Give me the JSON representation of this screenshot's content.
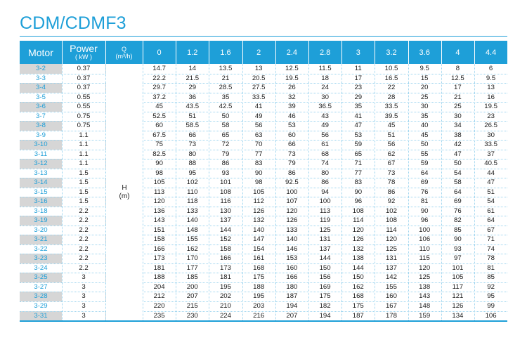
{
  "title": "CDM/CDMF3",
  "header": {
    "motor": "Motor",
    "power": "Power",
    "power_unit": "( kW )",
    "q": "Q",
    "q_unit": "(m³/h)",
    "flows": [
      "0",
      "1.2",
      "1.6",
      "2",
      "2.4",
      "2.8",
      "3",
      "3.2",
      "3.6",
      "4",
      "4.4"
    ]
  },
  "head_label": "H",
  "head_unit": "(m)",
  "rows": [
    {
      "model": "3-2",
      "power": "0.37",
      "h": [
        "14.7",
        "14",
        "13.5",
        "13",
        "12.5",
        "11.5",
        "11",
        "10.5",
        "9.5",
        "8",
        "6"
      ]
    },
    {
      "model": "3-3",
      "power": "0.37",
      "h": [
        "22.2",
        "21.5",
        "21",
        "20.5",
        "19.5",
        "18",
        "17",
        "16.5",
        "15",
        "12.5",
        "9.5"
      ]
    },
    {
      "model": "3-4",
      "power": "0.37",
      "h": [
        "29.7",
        "29",
        "28.5",
        "27.5",
        "26",
        "24",
        "23",
        "22",
        "20",
        "17",
        "13"
      ]
    },
    {
      "model": "3-5",
      "power": "0.55",
      "h": [
        "37.2",
        "36",
        "35",
        "33.5",
        "32",
        "30",
        "29",
        "28",
        "25",
        "21",
        "16"
      ]
    },
    {
      "model": "3-6",
      "power": "0.55",
      "h": [
        "45",
        "43.5",
        "42.5",
        "41",
        "39",
        "36.5",
        "35",
        "33.5",
        "30",
        "25",
        "19.5"
      ]
    },
    {
      "model": "3-7",
      "power": "0.75",
      "h": [
        "52.5",
        "51",
        "50",
        "49",
        "46",
        "43",
        "41",
        "39.5",
        "35",
        "30",
        "23"
      ]
    },
    {
      "model": "3-8",
      "power": "0.75",
      "h": [
        "60",
        "58.5",
        "58",
        "56",
        "53",
        "49",
        "47",
        "45",
        "40",
        "34",
        "26.5"
      ]
    },
    {
      "model": "3-9",
      "power": "1.1",
      "h": [
        "67.5",
        "66",
        "65",
        "63",
        "60",
        "56",
        "53",
        "51",
        "45",
        "38",
        "30"
      ]
    },
    {
      "model": "3-10",
      "power": "1.1",
      "h": [
        "75",
        "73",
        "72",
        "70",
        "66",
        "61",
        "59",
        "56",
        "50",
        "42",
        "33.5"
      ]
    },
    {
      "model": "3-11",
      "power": "1.1",
      "h": [
        "82.5",
        "80",
        "79",
        "77",
        "73",
        "68",
        "65",
        "62",
        "55",
        "47",
        "37"
      ]
    },
    {
      "model": "3-12",
      "power": "1.1",
      "h": [
        "90",
        "88",
        "86",
        "83",
        "79",
        "74",
        "71",
        "67",
        "59",
        "50",
        "40.5"
      ]
    },
    {
      "model": "3-13",
      "power": "1.5",
      "h": [
        "98",
        "95",
        "93",
        "90",
        "86",
        "80",
        "77",
        "73",
        "64",
        "54",
        "44"
      ]
    },
    {
      "model": "3-14",
      "power": "1.5",
      "h": [
        "105",
        "102",
        "101",
        "98",
        "92.5",
        "86",
        "83",
        "78",
        "69",
        "58",
        "47"
      ]
    },
    {
      "model": "3-15",
      "power": "1.5",
      "h": [
        "113",
        "110",
        "108",
        "105",
        "100",
        "94",
        "90",
        "86",
        "76",
        "64",
        "51"
      ]
    },
    {
      "model": "3-16",
      "power": "1.5",
      "h": [
        "120",
        "118",
        "116",
        "112",
        "107",
        "100",
        "96",
        "92",
        "81",
        "69",
        "54"
      ]
    },
    {
      "model": "3-18",
      "power": "2.2",
      "h": [
        "136",
        "133",
        "130",
        "126",
        "120",
        "113",
        "108",
        "102",
        "90",
        "76",
        "61"
      ]
    },
    {
      "model": "3-19",
      "power": "2.2",
      "h": [
        "143",
        "140",
        "137",
        "132",
        "126",
        "119",
        "114",
        "108",
        "96",
        "82",
        "64"
      ]
    },
    {
      "model": "3-20",
      "power": "2.2",
      "h": [
        "151",
        "148",
        "144",
        "140",
        "133",
        "125",
        "120",
        "114",
        "100",
        "85",
        "67"
      ]
    },
    {
      "model": "3-21",
      "power": "2.2",
      "h": [
        "158",
        "155",
        "152",
        "147",
        "140",
        "131",
        "126",
        "120",
        "106",
        "90",
        "71"
      ]
    },
    {
      "model": "3-22",
      "power": "2.2",
      "h": [
        "166",
        "162",
        "158",
        "154",
        "146",
        "137",
        "132",
        "125",
        "110",
        "93",
        "74"
      ]
    },
    {
      "model": "3-23",
      "power": "2.2",
      "h": [
        "173",
        "170",
        "166",
        "161",
        "153",
        "144",
        "138",
        "131",
        "115",
        "97",
        "78"
      ]
    },
    {
      "model": "3-24",
      "power": "2.2",
      "h": [
        "181",
        "177",
        "173",
        "168",
        "160",
        "150",
        "144",
        "137",
        "120",
        "101",
        "81"
      ]
    },
    {
      "model": "3-25",
      "power": "3",
      "h": [
        "188",
        "185",
        "181",
        "175",
        "166",
        "156",
        "150",
        "142",
        "125",
        "105",
        "85"
      ]
    },
    {
      "model": "3-27",
      "power": "3",
      "h": [
        "204",
        "200",
        "195",
        "188",
        "180",
        "169",
        "162",
        "155",
        "138",
        "117",
        "92"
      ]
    },
    {
      "model": "3-28",
      "power": "3",
      "h": [
        "212",
        "207",
        "202",
        "195",
        "187",
        "175",
        "168",
        "160",
        "143",
        "121",
        "95"
      ]
    },
    {
      "model": "3-29",
      "power": "3",
      "h": [
        "220",
        "215",
        "210",
        "203",
        "194",
        "182",
        "175",
        "167",
        "148",
        "126",
        "99"
      ]
    },
    {
      "model": "3-31",
      "power": "3",
      "h": [
        "235",
        "230",
        "224",
        "216",
        "207",
        "194",
        "187",
        "178",
        "159",
        "134",
        "106"
      ]
    }
  ]
}
